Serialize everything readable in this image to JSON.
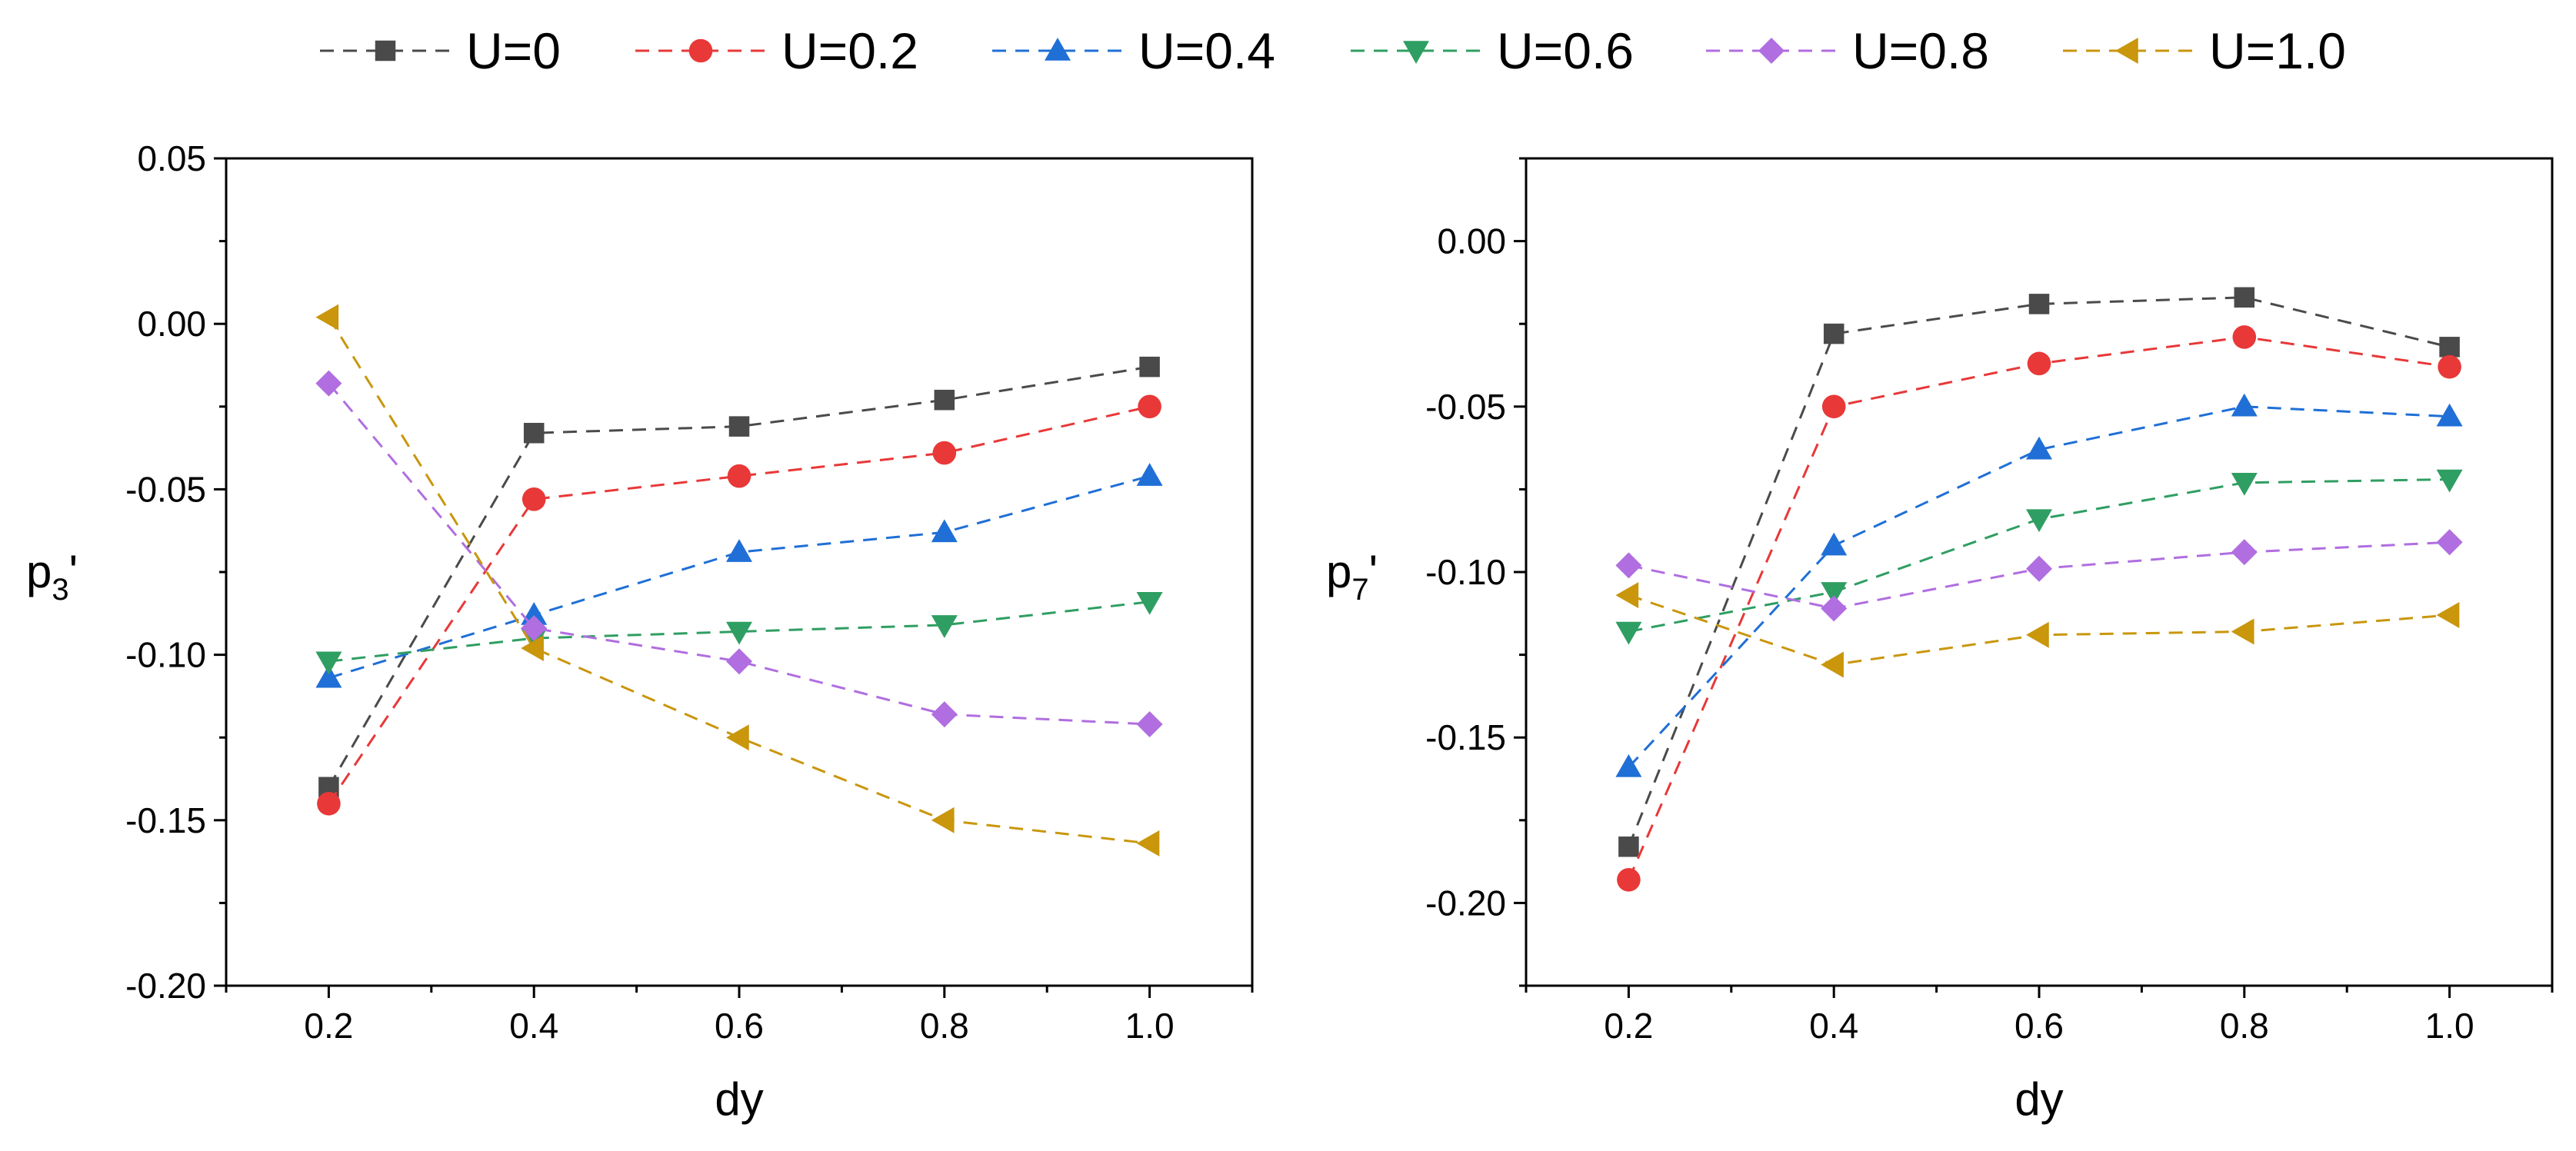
{
  "legend": [
    {
      "name": "U=0",
      "color": "#4a4a4a",
      "marker": "square"
    },
    {
      "name": "U=0.2",
      "color": "#e83838",
      "marker": "circle"
    },
    {
      "name": "U=0.4",
      "color": "#1f6fd6",
      "marker": "triangle-up"
    },
    {
      "name": "U=0.6",
      "color": "#2f9e62",
      "marker": "triangle-down"
    },
    {
      "name": "U=0.8",
      "color": "#b06ee0",
      "marker": "diamond"
    },
    {
      "name": "U=1.0",
      "color": "#c9960c",
      "marker": "triangle-left"
    }
  ],
  "chart_data": [
    {
      "type": "line",
      "title": "",
      "xlabel": "dy",
      "ylabel": {
        "base": "p",
        "sub": "3",
        "prime": "'"
      },
      "x": [
        0.2,
        0.4,
        0.6,
        0.8,
        1.0
      ],
      "xlim": [
        0.1,
        1.1
      ],
      "ylim": [
        -0.2,
        0.05
      ],
      "xticks": [
        "0.2",
        "0.4",
        "0.6",
        "0.8",
        "1.0"
      ],
      "xtick_values": [
        0.2,
        0.4,
        0.6,
        0.8,
        1.0
      ],
      "yticks": [
        "0.05",
        "0.00",
        "-0.05",
        "-0.10",
        "-0.15",
        "-0.20"
      ],
      "ytick_values": [
        0.05,
        0.0,
        -0.05,
        -0.1,
        -0.15,
        -0.2
      ],
      "series": [
        {
          "name": "U=0",
          "values": [
            -0.14,
            -0.033,
            -0.031,
            -0.023,
            -0.013
          ]
        },
        {
          "name": "U=0.2",
          "values": [
            -0.145,
            -0.053,
            -0.046,
            -0.039,
            -0.025
          ]
        },
        {
          "name": "U=0.4",
          "values": [
            -0.107,
            -0.088,
            -0.069,
            -0.063,
            -0.046
          ]
        },
        {
          "name": "U=0.6",
          "values": [
            -0.102,
            -0.095,
            -0.093,
            -0.091,
            -0.084
          ]
        },
        {
          "name": "U=0.8",
          "values": [
            -0.018,
            -0.092,
            -0.102,
            -0.118,
            -0.121
          ]
        },
        {
          "name": "U=1.0",
          "values": [
            0.002,
            -0.098,
            -0.125,
            -0.15,
            -0.157
          ]
        }
      ]
    },
    {
      "type": "line",
      "title": "",
      "xlabel": "dy",
      "ylabel": {
        "base": "p",
        "sub": "7",
        "prime": "'"
      },
      "x": [
        0.2,
        0.4,
        0.6,
        0.8,
        1.0
      ],
      "xlim": [
        0.1,
        1.1
      ],
      "ylim": [
        -0.225,
        0.025
      ],
      "xticks": [
        "0.2",
        "0.4",
        "0.6",
        "0.8",
        "1.0"
      ],
      "xtick_values": [
        0.2,
        0.4,
        0.6,
        0.8,
        1.0
      ],
      "yticks": [
        "0.00",
        "-0.05",
        "-0.10",
        "-0.15",
        "-0.20"
      ],
      "ytick_values": [
        0.0,
        -0.05,
        -0.1,
        -0.15,
        -0.2
      ],
      "series": [
        {
          "name": "U=0",
          "values": [
            -0.183,
            -0.028,
            -0.019,
            -0.017,
            -0.032
          ]
        },
        {
          "name": "U=0.2",
          "values": [
            -0.193,
            -0.05,
            -0.037,
            -0.029,
            -0.038
          ]
        },
        {
          "name": "U=0.4",
          "values": [
            -0.159,
            -0.092,
            -0.063,
            -0.05,
            -0.053
          ]
        },
        {
          "name": "U=0.6",
          "values": [
            -0.118,
            -0.106,
            -0.084,
            -0.073,
            -0.072
          ]
        },
        {
          "name": "U=0.8",
          "values": [
            -0.098,
            -0.111,
            -0.099,
            -0.094,
            -0.091
          ]
        },
        {
          "name": "U=1.0",
          "values": [
            -0.107,
            -0.128,
            -0.119,
            -0.118,
            -0.113
          ]
        }
      ]
    }
  ]
}
